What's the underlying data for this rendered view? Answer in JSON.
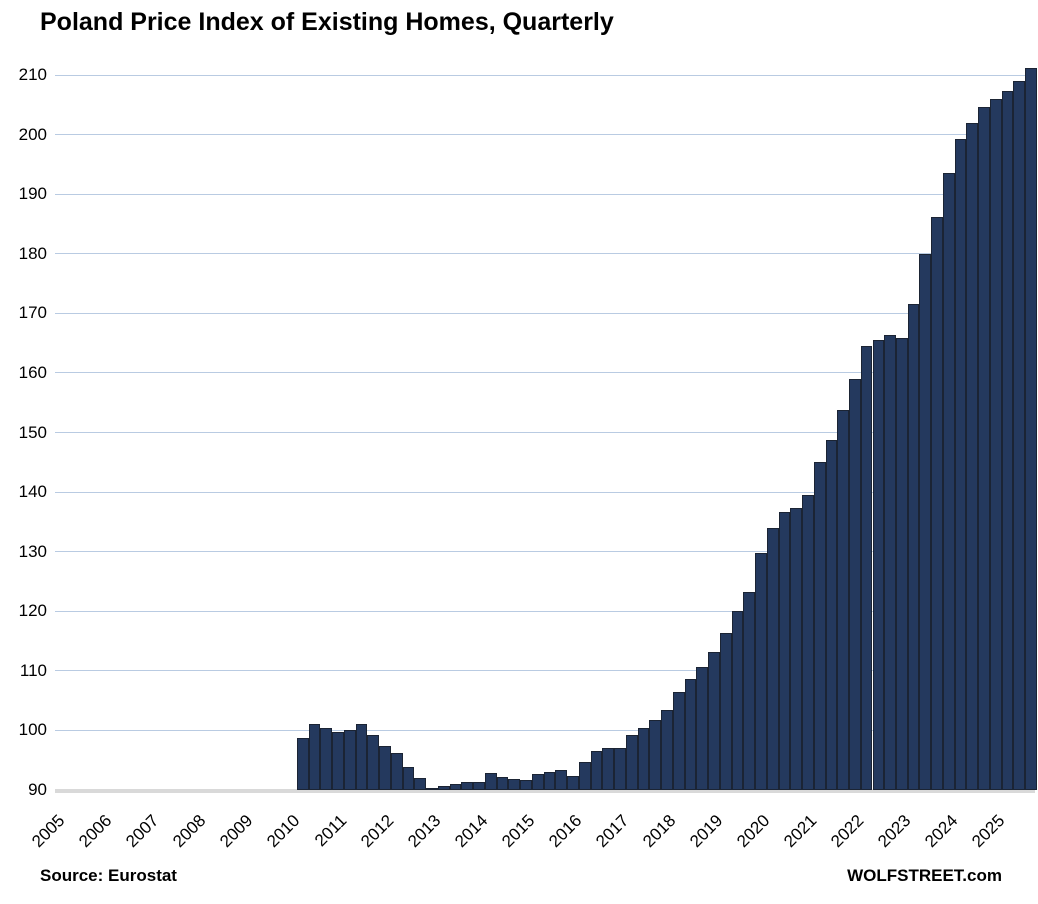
{
  "title": "Poland Price Index of Existing Homes, Quarterly",
  "footer": {
    "source": "Source: Eurostat",
    "branding": "WOLFSTREET.com"
  },
  "colors": {
    "bar_fill": "#24395e",
    "bar_outline": "#1b2434",
    "gridline": "#b9cbe2",
    "baseline": "#d9d9d9",
    "text": "#000000"
  },
  "chart_data": {
    "type": "bar",
    "title": "Poland Price Index of Existing Homes, Quarterly",
    "xlabel": "",
    "ylabel": "",
    "ylim": [
      90,
      210
    ],
    "yticks": [
      90,
      100,
      110,
      120,
      130,
      140,
      150,
      160,
      170,
      180,
      190,
      200,
      210
    ],
    "grid": "horizontal",
    "legend": "none",
    "year_labels": [
      "2005",
      "2006",
      "2007",
      "2008",
      "2009",
      "2010",
      "2011",
      "2012",
      "2013",
      "2014",
      "2015",
      "2016",
      "2017",
      "2018",
      "2019",
      "2020",
      "2021",
      "2022",
      "2023",
      "2024",
      "2025"
    ],
    "first_bar_quarter": "2010 Q1",
    "last_bar_quarter": "2025 Q3",
    "quarters": [
      "2010 Q1",
      "2010 Q2",
      "2010 Q3",
      "2010 Q4",
      "2011 Q1",
      "2011 Q2",
      "2011 Q3",
      "2011 Q4",
      "2012 Q1",
      "2012 Q2",
      "2012 Q3",
      "2012 Q4",
      "2013 Q1",
      "2013 Q2",
      "2013 Q3",
      "2013 Q4",
      "2014 Q1",
      "2014 Q2",
      "2014 Q3",
      "2014 Q4",
      "2015 Q1",
      "2015 Q2",
      "2015 Q3",
      "2015 Q4",
      "2016 Q1",
      "2016 Q2",
      "2016 Q3",
      "2016 Q4",
      "2017 Q1",
      "2017 Q2",
      "2017 Q3",
      "2017 Q4",
      "2018 Q1",
      "2018 Q2",
      "2018 Q3",
      "2018 Q4",
      "2019 Q1",
      "2019 Q2",
      "2019 Q3",
      "2019 Q4",
      "2020 Q1",
      "2020 Q2",
      "2020 Q3",
      "2020 Q4",
      "2021 Q1",
      "2021 Q2",
      "2021 Q3",
      "2021 Q4",
      "2022 Q1",
      "2022 Q2",
      "2022 Q3",
      "2022 Q4",
      "2023 Q1",
      "2023 Q2",
      "2023 Q3",
      "2023 Q4",
      "2024 Q1",
      "2024 Q2",
      "2024 Q3",
      "2024 Q4",
      "2025 Q1",
      "2025 Q2",
      "2025 Q3"
    ],
    "values": [
      98.8,
      101.0,
      100.4,
      99.8,
      100.0,
      101.0,
      99.2,
      97.4,
      96.2,
      93.9,
      92.1,
      90.4,
      90.7,
      91.0,
      91.3,
      91.4,
      92.9,
      92.2,
      91.9,
      91.6,
      92.7,
      93.1,
      93.4,
      92.4,
      94.7,
      96.5,
      97.1,
      97.1,
      99.2,
      100.4,
      101.7,
      103.4,
      106.4,
      108.7,
      110.6,
      113.1,
      116.3,
      120.0,
      123.2,
      129.8,
      134.0,
      136.6,
      137.4,
      139.5,
      145.0,
      148.7,
      153.8,
      158.9,
      164.5,
      165.5,
      166.4,
      165.8,
      171.5,
      180.0,
      186.1,
      193.5,
      199.3,
      201.9,
      204.6,
      205.9,
      207.3,
      209.0,
      211.2
    ]
  }
}
